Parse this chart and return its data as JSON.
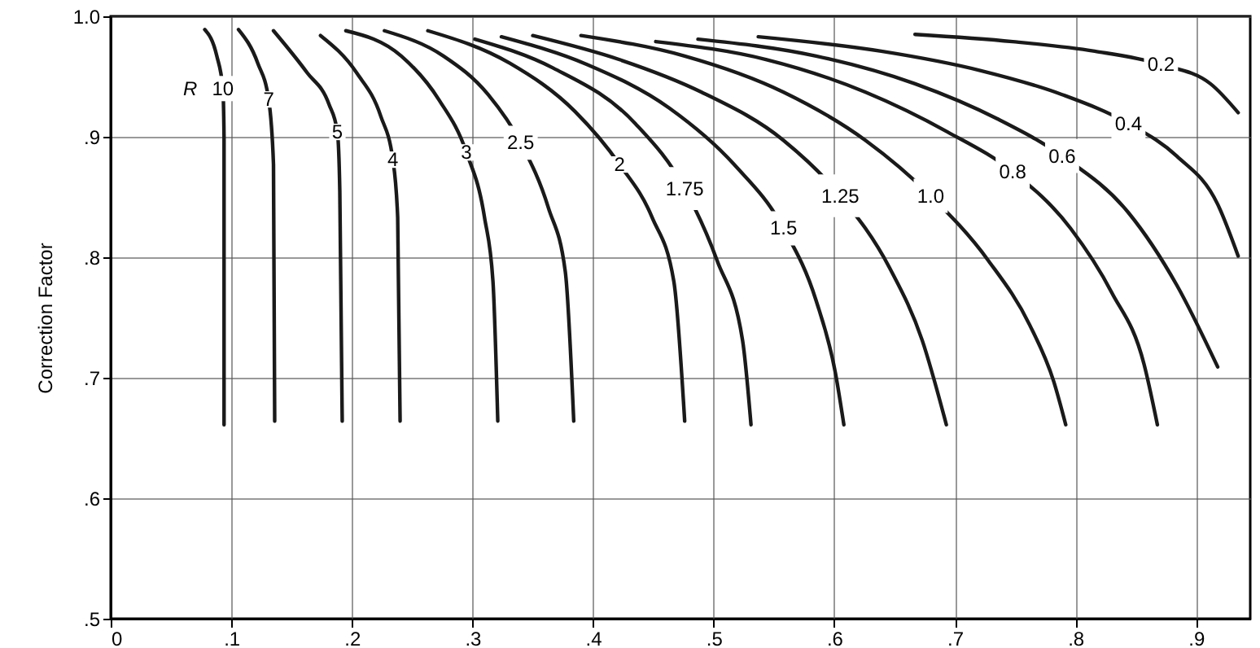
{
  "chart_data": {
    "type": "line",
    "ylabel": "Correction Factor",
    "xlim": [
      0,
      0.945
    ],
    "ylim": [
      0.5,
      1.0
    ],
    "xticks": [
      {
        "value": 0,
        "label": "0"
      },
      {
        "value": 0.1,
        "label": ".1"
      },
      {
        "value": 0.2,
        "label": ".2"
      },
      {
        "value": 0.3,
        "label": ".3"
      },
      {
        "value": 0.4,
        "label": ".4"
      },
      {
        "value": 0.5,
        "label": ".5"
      },
      {
        "value": 0.6,
        "label": ".6"
      },
      {
        "value": 0.7,
        "label": ".7"
      },
      {
        "value": 0.8,
        "label": ".8"
      },
      {
        "value": 0.9,
        "label": ".9"
      }
    ],
    "yticks": [
      {
        "value": 0.5,
        "label": ".5"
      },
      {
        "value": 0.6,
        "label": ".6"
      },
      {
        "value": 0.7,
        "label": ".7"
      },
      {
        "value": 0.8,
        "label": ".8"
      },
      {
        "value": 0.9,
        "label": ".9"
      },
      {
        "value": 1.0,
        "label": "1.0"
      }
    ],
    "grid": true,
    "marker": "none",
    "line_style": "solid",
    "annotations": [
      "R"
    ],
    "series": [
      {
        "name": "10",
        "color": "#1a1a1a",
        "x": [
          0.078,
          0.088,
          0.093,
          0.094,
          0.094
        ],
        "values": [
          0.989,
          0.967,
          0.94,
          0.9,
          0.661
        ]
      },
      {
        "name": "7",
        "color": "#1a1a1a",
        "x": [
          0.106,
          0.122,
          0.131,
          0.135,
          0.136
        ],
        "values": [
          0.989,
          0.961,
          0.931,
          0.877,
          0.664
        ]
      },
      {
        "name": "5",
        "color": "#1a1a1a",
        "x": [
          0.135,
          0.163,
          0.181,
          0.188,
          0.19,
          0.192
        ],
        "values": [
          0.988,
          0.953,
          0.927,
          0.904,
          0.855,
          0.664
        ]
      },
      {
        "name": "4",
        "color": "#1a1a1a",
        "x": [
          0.174,
          0.204,
          0.224,
          0.234,
          0.238,
          0.24
        ],
        "values": [
          0.984,
          0.953,
          0.917,
          0.881,
          0.833,
          0.664
        ]
      },
      {
        "name": "3",
        "color": "#1a1a1a",
        "x": [
          0.195,
          0.241,
          0.272,
          0.295,
          0.31,
          0.317,
          0.321
        ],
        "values": [
          0.988,
          0.967,
          0.931,
          0.887,
          0.833,
          0.78,
          0.664
        ]
      },
      {
        "name": "2.5",
        "color": "#1a1a1a",
        "x": [
          0.227,
          0.276,
          0.313,
          0.34,
          0.363,
          0.377,
          0.384
        ],
        "values": [
          0.988,
          0.967,
          0.935,
          0.895,
          0.841,
          0.788,
          0.664
        ]
      },
      {
        "name": "2",
        "color": "#1a1a1a",
        "x": [
          0.263,
          0.331,
          0.385,
          0.422,
          0.449,
          0.467,
          0.476
        ],
        "values": [
          0.988,
          0.961,
          0.921,
          0.877,
          0.833,
          0.78,
          0.664
        ]
      },
      {
        "name": "1.75",
        "color": "#1a1a1a",
        "x": [
          0.302,
          0.367,
          0.435,
          0.476,
          0.503,
          0.524,
          0.531
        ],
        "values": [
          0.981,
          0.957,
          0.911,
          0.857,
          0.797,
          0.731,
          0.661
        ]
      },
      {
        "name": "1.5",
        "color": "#1a1a1a",
        "x": [
          0.324,
          0.395,
          0.463,
          0.517,
          0.558,
          0.585,
          0.601,
          0.608
        ],
        "values": [
          0.983,
          0.96,
          0.924,
          0.877,
          0.824,
          0.764,
          0.704,
          0.661
        ]
      },
      {
        "name": "1.25",
        "color": "#1a1a1a",
        "x": [
          0.35,
          0.422,
          0.49,
          0.558,
          0.605,
          0.646,
          0.673,
          0.693
        ],
        "values": [
          0.984,
          0.964,
          0.937,
          0.897,
          0.851,
          0.791,
          0.731,
          0.661
        ]
      },
      {
        "name": "1.0",
        "color": "#1a1a1a",
        "x": [
          0.39,
          0.476,
          0.558,
          0.626,
          0.68,
          0.728,
          0.762,
          0.782,
          0.792
        ],
        "values": [
          0.984,
          0.967,
          0.937,
          0.897,
          0.851,
          0.797,
          0.744,
          0.697,
          0.661
        ]
      },
      {
        "name": "0.8",
        "color": "#1a1a1a",
        "x": [
          0.452,
          0.544,
          0.626,
          0.694,
          0.748,
          0.796,
          0.83,
          0.857,
          0.868
        ],
        "values": [
          0.979,
          0.964,
          0.937,
          0.904,
          0.871,
          0.824,
          0.771,
          0.711,
          0.661
        ]
      },
      {
        "name": "0.6",
        "color": "#1a1a1a",
        "x": [
          0.487,
          0.585,
          0.667,
          0.735,
          0.789,
          0.844,
          0.884,
          0.918
        ],
        "values": [
          0.981,
          0.967,
          0.944,
          0.915,
          0.884,
          0.837,
          0.777,
          0.709
        ]
      },
      {
        "name": "0.4",
        "color": "#1a1a1a",
        "x": [
          0.537,
          0.639,
          0.721,
          0.789,
          0.844,
          0.884,
          0.918,
          0.935
        ],
        "values": [
          0.983,
          0.971,
          0.955,
          0.935,
          0.911,
          0.884,
          0.844,
          0.801
        ]
      },
      {
        "name": "0.2",
        "color": "#1a1a1a",
        "x": [
          0.667,
          0.748,
          0.816,
          0.871,
          0.912,
          0.935
        ],
        "values": [
          0.985,
          0.979,
          0.971,
          0.96,
          0.944,
          0.92
        ]
      }
    ]
  }
}
